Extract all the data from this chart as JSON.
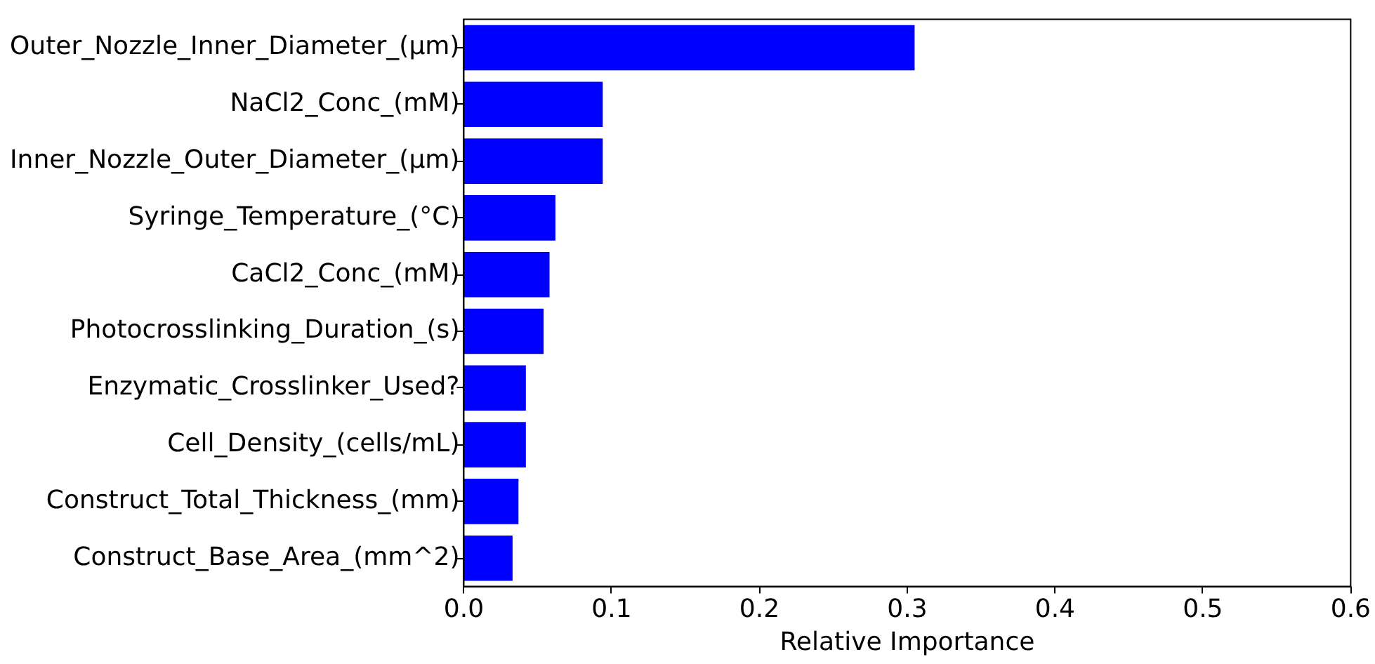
{
  "chart_data": {
    "type": "bar",
    "orientation": "horizontal",
    "xlabel": "Relative Importance",
    "categories": [
      "Outer_Nozzle_Inner_Diameter_(µm)",
      "NaCl2_Conc_(mM)",
      "Inner_Nozzle_Outer_Diameter_(µm)",
      "Syringe_Temperature_(°C)",
      "CaCl2_Conc_(mM)",
      "Photocrosslinking_Duration_(s)",
      "Enzymatic_Crosslinker_Used?",
      "Cell_Density_(cells/mL)",
      "Construct_Total_Thickness_(mm)",
      "Construct_Base_Area_(mm^2)"
    ],
    "values": [
      0.305,
      0.094,
      0.094,
      0.062,
      0.058,
      0.054,
      0.042,
      0.042,
      0.037,
      0.033
    ],
    "color": "#0000ff",
    "xlim": [
      0,
      0.6
    ],
    "xticks": [
      {
        "value": 0,
        "label": "0.0"
      },
      {
        "value": 0.1,
        "label": "0.1"
      },
      {
        "value": 0.2,
        "label": "0.2"
      },
      {
        "value": 0.3,
        "label": "0.3"
      },
      {
        "value": 0.4,
        "label": "0.4"
      },
      {
        "value": 0.5,
        "label": "0.5"
      },
      {
        "value": 0.6,
        "label": "0.6"
      }
    ],
    "grid": false,
    "legend": false
  }
}
